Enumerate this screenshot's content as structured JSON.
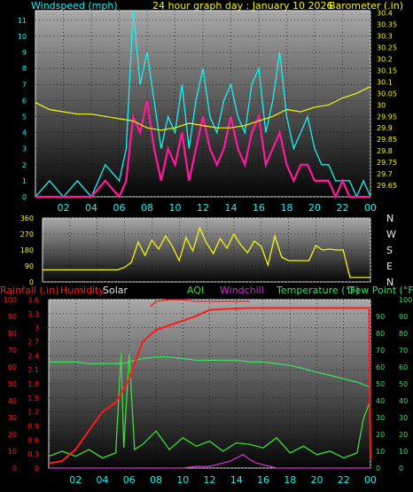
{
  "header": {
    "left": "Windspeed (mph)",
    "center": "24 hour graph day : January 10 2026",
    "right": "Barometer (.in)"
  },
  "colors": {
    "bg": "#000000",
    "plot_top": "#9c9c9c",
    "plot_bottom": "#000000",
    "wind_cyan": "#19f0f0",
    "gust_magenta": "#ff1a9c",
    "baro_yellow": "#f5f514",
    "dir_yellow": "#f5f514",
    "rain_red": "#ff1a1a",
    "humid_red": "#ff1a1a",
    "temp_green": "#3cdc64",
    "aqi_green": "#3cdc3c",
    "windchill_magenta": "#cc33cc",
    "axis_cyan": "#19f0f0",
    "axis_red": "#ff1a1a"
  },
  "chart_data": [
    {
      "type": "line",
      "name": "wind-barometer",
      "x_ticks": [
        "02",
        "04",
        "06",
        "08",
        "10",
        "12",
        "14",
        "16",
        "18",
        "20",
        "22",
        "00"
      ],
      "x_hours": [
        2,
        4,
        6,
        8,
        10,
        12,
        14,
        16,
        18,
        20,
        22,
        24
      ],
      "y_left": {
        "ticks": [
          0,
          1,
          2,
          3,
          4,
          5,
          6,
          7,
          8,
          9,
          10,
          11
        ],
        "ylim": [
          0,
          11.6
        ]
      },
      "y_right": {
        "ticks": [
          "30.4",
          "30.35",
          "30.3",
          "30.25",
          "30.2",
          "30.15",
          "30.1",
          "30.05",
          "30",
          "29.95",
          "29.9",
          "29.85",
          "29.8",
          "29.75",
          "29.7",
          "29.65"
        ],
        "ylim": [
          29.6,
          30.41
        ]
      },
      "barometer": {
        "x": [
          0,
          1,
          2,
          3,
          4,
          5,
          6,
          7,
          8,
          9,
          10,
          11,
          12,
          13,
          14,
          15,
          16,
          17,
          18,
          19,
          20,
          21,
          22,
          23,
          24
        ],
        "values": [
          30.01,
          29.98,
          29.97,
          29.96,
          29.96,
          29.95,
          29.94,
          29.93,
          29.9,
          29.89,
          29.9,
          29.92,
          29.91,
          29.9,
          29.9,
          29.91,
          29.93,
          29.95,
          29.98,
          29.97,
          29.99,
          30.0,
          30.03,
          30.05,
          30.08
        ]
      },
      "wind_gust": {
        "x": [
          0,
          1,
          2,
          3,
          4,
          5,
          6,
          6.5,
          7,
          7.5,
          8,
          8.5,
          9,
          9.5,
          10,
          10.5,
          11,
          11.5,
          12,
          12.5,
          13,
          13.5,
          14,
          14.5,
          15,
          15.5,
          16,
          16.5,
          17,
          17.5,
          18,
          18.5,
          19,
          19.5,
          20,
          20.5,
          21,
          21.5,
          22,
          22.5,
          23,
          23.5,
          24
        ],
        "values": [
          0,
          1,
          0,
          1,
          0,
          2,
          1,
          3,
          11.6,
          7,
          9,
          6,
          3,
          5,
          4,
          7,
          3,
          6,
          8,
          5,
          4,
          6,
          7,
          5,
          4,
          7,
          8,
          4,
          6,
          9,
          5,
          3,
          4,
          5,
          3,
          2,
          2,
          1,
          1,
          1,
          0,
          1,
          0
        ]
      },
      "wind_avg": {
        "x": [
          0,
          1,
          2,
          3,
          4,
          5,
          6,
          6.5,
          7,
          7.5,
          8,
          8.5,
          9,
          9.5,
          10,
          10.5,
          11,
          11.5,
          12,
          12.5,
          13,
          13.5,
          14,
          14.5,
          15,
          15.5,
          16,
          16.5,
          17,
          17.5,
          18,
          18.5,
          19,
          19.5,
          20,
          20.5,
          21,
          21.5,
          22,
          22.5,
          23,
          23.5,
          24
        ],
        "values": [
          0,
          0,
          0,
          0,
          0,
          1,
          0,
          1,
          5,
          4,
          6,
          3,
          1,
          3,
          2,
          4,
          1,
          3,
          5,
          3,
          2,
          3,
          5,
          3,
          2,
          4,
          5,
          2,
          3,
          4,
          2,
          1,
          2,
          2,
          1,
          1,
          1,
          0,
          1,
          0,
          0,
          0,
          0
        ]
      }
    },
    {
      "type": "line",
      "name": "wind-direction",
      "x_hours": [
        2,
        4,
        6,
        8,
        10,
        12,
        14,
        16,
        18,
        20,
        22,
        24
      ],
      "y_ticks": [
        360,
        270,
        180,
        90,
        0
      ],
      "y_right_labels": [
        "N",
        "W",
        "S",
        "E",
        "N"
      ],
      "ylim": [
        0,
        360
      ],
      "direction": {
        "x": [
          0,
          1,
          2,
          3,
          4,
          5,
          5.5,
          6,
          6.5,
          7,
          7.5,
          8,
          8.5,
          9,
          9.5,
          10,
          10.5,
          11,
          11.5,
          12,
          12.5,
          13,
          13.5,
          14,
          14.5,
          15,
          15.5,
          16,
          16.5,
          17,
          17.5,
          18,
          18.5,
          19,
          19.5,
          20,
          20.5,
          21,
          21.5,
          22,
          22.5,
          23,
          23.5,
          24
        ],
        "values": [
          68,
          68,
          68,
          68,
          68,
          68,
          68,
          82,
          110,
          225,
          150,
          235,
          185,
          260,
          200,
          120,
          250,
          175,
          305,
          220,
          160,
          245,
          190,
          270,
          210,
          165,
          230,
          200,
          95,
          260,
          140,
          120,
          120,
          120,
          120,
          205,
          180,
          185,
          180,
          180,
          25,
          25,
          25,
          25
        ]
      }
    },
    {
      "type": "line",
      "name": "rain-humidity-temperature",
      "x_hours": [
        2,
        4,
        6,
        8,
        10,
        12,
        14,
        16,
        18,
        20,
        22,
        24
      ],
      "rain_axis": {
        "label": "Rainfall (.in)",
        "ticks": [
          "3.6",
          "3.3",
          "3",
          "2.7",
          "2.4",
          "2.1",
          "1.8",
          "1.5",
          "1.2",
          "0.9",
          "0.6",
          "0.3",
          "0"
        ],
        "ylim": [
          0,
          3.6
        ]
      },
      "humidity_axis": {
        "label": "Humidity",
        "ticks": [
          100,
          90,
          80,
          70,
          60,
          50,
          40,
          30,
          20,
          10,
          0
        ],
        "ylim": [
          0,
          100
        ]
      },
      "temp_axis": {
        "label": "Temperature (°F)",
        "ticks": [
          90,
          80,
          70,
          60,
          50,
          40,
          30,
          20,
          10,
          0
        ],
        "ylim": [
          0,
          100
        ]
      },
      "aqi_axis": {
        "ticks": [
          100,
          90,
          80,
          70,
          60,
          50,
          40,
          30,
          20,
          10,
          0
        ],
        "ylim": [
          0,
          100
        ]
      },
      "legend": {
        "solar": "Solar",
        "aqi": "AQI",
        "windchill": "Windchill",
        "dewpoint": "Dew Point (°F)"
      },
      "rainfall": {
        "x": [
          0,
          1,
          2,
          3,
          4,
          5,
          6,
          7,
          8,
          9,
          10,
          11,
          12,
          13,
          14,
          15,
          16,
          17,
          18,
          19,
          20,
          21,
          22,
          23,
          23.9,
          24
        ],
        "values": [
          0.1,
          0.15,
          0.4,
          0.8,
          1.2,
          1.4,
          1.9,
          2.7,
          2.95,
          3.05,
          3.15,
          3.25,
          3.38,
          3.4,
          3.41,
          3.42,
          3.42,
          3.42,
          3.42,
          3.42,
          3.42,
          3.42,
          3.42,
          3.42,
          3.42,
          0.2
        ]
      },
      "humidity": {
        "x": [
          7.6,
          8,
          9,
          10,
          11,
          12,
          13,
          14,
          14.5,
          15
        ],
        "values": [
          96,
          99,
          100,
          100,
          99,
          99,
          99,
          99,
          99,
          99
        ]
      },
      "temperature": {
        "x": [
          0,
          1,
          2,
          3,
          4,
          5,
          5.5,
          6,
          7,
          8,
          9,
          10,
          11,
          12,
          13,
          14,
          15,
          16,
          17,
          18,
          19,
          20,
          21,
          22,
          23,
          24
        ],
        "values": [
          63,
          63,
          63,
          62,
          62,
          62,
          62,
          63,
          65,
          66,
          66,
          65,
          64,
          64,
          64,
          64,
          63,
          63,
          62,
          61,
          59,
          57,
          55,
          53,
          51,
          48
        ]
      },
      "aqi": {
        "x": [
          0,
          1,
          2,
          3,
          4,
          5,
          5.4,
          5.6,
          6,
          6.4,
          7,
          8,
          9,
          10,
          11,
          12,
          13,
          14,
          15,
          16,
          17,
          18,
          19,
          20,
          21,
          22,
          23,
          23.5,
          24
        ],
        "values": [
          7,
          10,
          7,
          11,
          6,
          9,
          68,
          12,
          68,
          11,
          14,
          22,
          11,
          18,
          13,
          16,
          10,
          15,
          14,
          12,
          18,
          9,
          13,
          8,
          10,
          6,
          9,
          30,
          40
        ]
      },
      "windchill": {
        "x": [
          0,
          7,
          9,
          10,
          11,
          12,
          12.5,
          13,
          13.5,
          14,
          14.5,
          15,
          15.5,
          16,
          17,
          24
        ],
        "values": [
          0,
          0,
          0,
          0,
          1,
          1,
          2,
          3,
          4,
          6,
          8,
          5,
          3,
          2,
          0,
          0
        ]
      }
    }
  ]
}
